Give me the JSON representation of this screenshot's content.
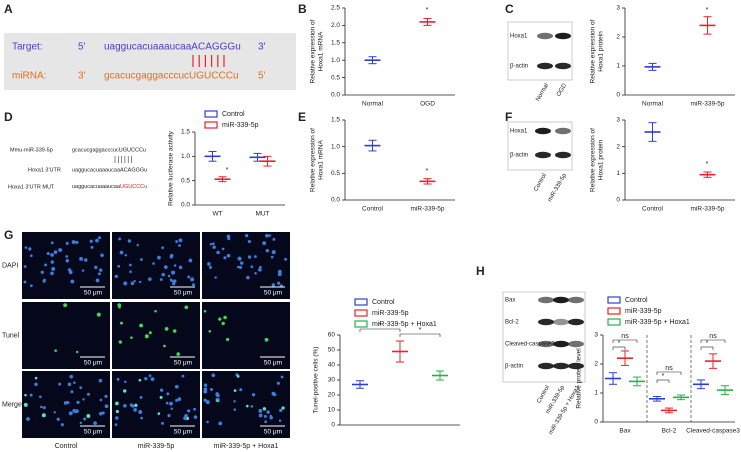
{
  "panel_labels": [
    "A",
    "B",
    "C",
    "D",
    "E",
    "F",
    "G",
    "H"
  ],
  "panel_a": {
    "target_label": "Target:",
    "target_5": "5'",
    "target_seq": "uaggucacuaaaucaaACAGGGu",
    "target_3": "3'",
    "mirna_label": "miRNA:",
    "mirna_3": "3'",
    "mirna_seq": "gcacucgaggacccucUGUCCCu",
    "mirna_5": "5'"
  },
  "panel_c_blot": {
    "rows": [
      "Hoxa1",
      "β-actin"
    ],
    "lanes": [
      "Normal",
      "OGD"
    ]
  },
  "panel_d_sequences": [
    {
      "name": "Mmu-miR-339-5p",
      "seq": "gcacucgaggacccucUGUCCCu"
    },
    {
      "name": "Hoxa1 3'UTR",
      "seq": "uaggucacuaaaucaaACAGGGu"
    },
    {
      "name": "Hoxa1 3'UTR MUT",
      "seq": "uaggucacuaaaucaa",
      "mutation": "UGUCCCu"
    }
  ],
  "panel_f_blot": {
    "rows": [
      "Hoxa1",
      "β-actin"
    ],
    "lanes": [
      "Control",
      "miR-339-5p"
    ]
  },
  "panel_g_images": {
    "rows": [
      "DAPI",
      "Tunel",
      "Merge"
    ],
    "columns": [
      "Control",
      "miR-339-5p",
      "miR-339-5p + Hoxa1"
    ],
    "scale_bar": "50 μm"
  },
  "panel_h_blot": {
    "rows": [
      "Bax",
      "Bcl-2",
      "Cleaved-caspase3",
      "β-actin"
    ],
    "lanes": [
      "Control",
      "miR-339-5p",
      "miR-339-5p + Hoxa1"
    ]
  },
  "chart_data": [
    {
      "type": "mean-sd",
      "ylabel": [
        "Relative expression of",
        "Hoxa1 mRNA"
      ],
      "categories": [
        "Normal",
        "OGD"
      ],
      "values": [
        1.0,
        2.1
      ],
      "errors": [
        0.1,
        0.1
      ],
      "colors": [
        "#2b3fd6",
        "#e8232a"
      ],
      "annotations": [
        "*"
      ],
      "ylim": [
        0,
        2.5
      ],
      "yticks": [
        {
          "value": 0,
          "label": "0.0"
        },
        {
          "value": 0.5,
          "label": "0.5"
        },
        {
          "value": 1,
          "label": "1.0"
        },
        {
          "value": 1.5,
          "label": "1.5"
        },
        {
          "value": 2,
          "label": "2.0"
        },
        {
          "value": 2.5,
          "label": "2.5"
        }
      ]
    },
    {
      "type": "mean-sd",
      "ylabel": [
        "Relative expression of",
        "Hoxa1 protein"
      ],
      "categories": [
        "Normal",
        "miR-339-5p"
      ],
      "values": [
        0.97,
        2.4
      ],
      "errors": [
        0.12,
        0.3
      ],
      "colors": [
        "#2b3fd6",
        "#e8232a"
      ],
      "annotations": [
        "*"
      ],
      "ylim": [
        0,
        3
      ],
      "yticks": [
        0,
        1,
        2,
        3
      ]
    },
    {
      "type": "mean-sd",
      "ylabel": [
        "Relative luciferase activity"
      ],
      "categories": [
        "WT",
        "MUT"
      ],
      "series": [
        {
          "name": "Control",
          "color": "#2b3fd6",
          "values": [
            1.0,
            0.98
          ],
          "errors": [
            0.1,
            0.08
          ]
        },
        {
          "name": "miR-339-5p",
          "color": "#e8232a",
          "values": [
            0.53,
            0.9
          ],
          "errors": [
            0.05,
            0.1
          ]
        }
      ],
      "annotations": [
        "*"
      ],
      "ylim": [
        0,
        1.5
      ],
      "yticks": [
        {
          "value": 0,
          "label": "0.0"
        },
        {
          "value": 0.5,
          "label": "0.5"
        },
        {
          "value": 1,
          "label": "1.0"
        },
        {
          "value": 1.5,
          "label": "1.5"
        }
      ]
    },
    {
      "type": "mean-sd",
      "ylabel": [
        "Relative expression of",
        "Hoxa1 mRNA"
      ],
      "categories": [
        "Control",
        "miR-339-5p"
      ],
      "values": [
        1.02,
        0.35
      ],
      "errors": [
        0.1,
        0.05
      ],
      "colors": [
        "#2b3fd6",
        "#e8232a"
      ],
      "annotations": [
        "*"
      ],
      "ylim": [
        0,
        1.5
      ],
      "yticks": [
        {
          "value": 0,
          "label": "0.0"
        },
        {
          "value": 0.5,
          "label": "0.5"
        },
        {
          "value": 1,
          "label": "1.0"
        },
        {
          "value": 1.5,
          "label": "1.5"
        }
      ]
    },
    {
      "type": "mean-sd",
      "ylabel": [
        "Relative expression of",
        "Hoxa1 protein"
      ],
      "categories": [
        "Control",
        "miR-339-5p"
      ],
      "values": [
        2.55,
        0.95
      ],
      "errors": [
        0.35,
        0.1
      ],
      "colors": [
        "#2b3fd6",
        "#e8232a"
      ],
      "annotations": [
        "*"
      ],
      "ylim": [
        0,
        3
      ],
      "yticks": [
        0,
        1,
        2,
        3
      ]
    },
    {
      "type": "mean-sd",
      "ylabel": [
        "Tunel-positive cells (%)"
      ],
      "series": [
        {
          "name": "Control",
          "color": "#2b3fd6",
          "values": [
            27
          ],
          "errors": [
            2.5
          ]
        },
        {
          "name": "miR-339-5p",
          "color": "#e8232a",
          "values": [
            49
          ],
          "errors": [
            7
          ]
        },
        {
          "name": "miR-339-5p + Hoxa1",
          "color": "#22b24c",
          "values": [
            33
          ],
          "errors": [
            3
          ]
        }
      ],
      "annotations": [
        "*",
        "*"
      ],
      "ylim": [
        0,
        60
      ],
      "yticks": [
        0,
        10,
        20,
        30,
        40,
        50,
        60
      ]
    },
    {
      "type": "mean-sd",
      "ylabel": [
        "Relative protein level"
      ],
      "categories": [
        "Bax",
        "Bcl-2",
        "Cleaved-caspase3"
      ],
      "series": [
        {
          "name": "Control",
          "color": "#2b3fd6",
          "values": [
            1.5,
            0.8,
            1.3
          ],
          "errors": [
            0.2,
            0.08,
            0.15
          ]
        },
        {
          "name": "miR-339-5p",
          "color": "#e8232a",
          "values": [
            2.2,
            0.4,
            2.1
          ],
          "errors": [
            0.25,
            0.08,
            0.25
          ]
        },
        {
          "name": "miR-339-5p + Hoxa1",
          "color": "#22b24c",
          "values": [
            1.4,
            0.85,
            1.1
          ],
          "errors": [
            0.15,
            0.08,
            0.15
          ]
        }
      ],
      "annotations": [
        "ns",
        "*",
        "ns",
        "*",
        "ns",
        "*"
      ],
      "ylim": [
        0,
        3
      ],
      "yticks": [
        0,
        1,
        2,
        3
      ]
    }
  ]
}
